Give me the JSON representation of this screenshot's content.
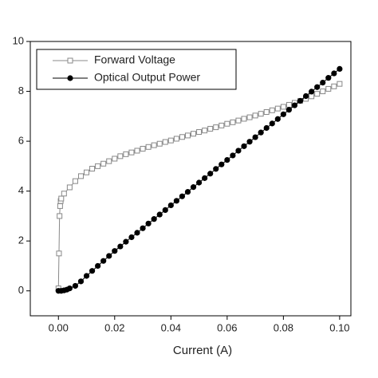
{
  "chart_data": {
    "type": "scatter-line",
    "x_label": "Current (A)",
    "xlim": [
      -0.01,
      0.104
    ],
    "ylim": [
      -1,
      10
    ],
    "xticks": [
      {
        "value": 0,
        "label": "0.00"
      },
      {
        "value": 0.02,
        "label": "0.02"
      },
      {
        "value": 0.04,
        "label": "0.04"
      },
      {
        "value": 0.06,
        "label": "0.06"
      },
      {
        "value": 0.08,
        "label": "0.08"
      },
      {
        "value": 0.1,
        "label": "0.10"
      }
    ],
    "yticks": [
      0,
      2,
      4,
      6,
      8,
      10
    ],
    "legend": "upper left",
    "series": [
      {
        "name": "Forward Voltage",
        "color": "#888888",
        "marker": "open-square",
        "x": [
          0,
          0.0002,
          0.0004,
          0.0006,
          0.0008,
          0.001,
          0.002,
          0.004,
          0.006,
          0.008,
          0.01,
          0.012,
          0.014,
          0.016,
          0.018,
          0.02,
          0.022,
          0.024,
          0.026,
          0.028,
          0.03,
          0.032,
          0.034,
          0.036,
          0.038,
          0.04,
          0.042,
          0.044,
          0.046,
          0.048,
          0.05,
          0.052,
          0.054,
          0.056,
          0.058,
          0.06,
          0.062,
          0.064,
          0.066,
          0.068,
          0.07,
          0.072,
          0.074,
          0.076,
          0.078,
          0.08,
          0.082,
          0.084,
          0.086,
          0.088,
          0.09,
          0.092,
          0.094,
          0.096,
          0.098,
          0.1
        ],
        "values": [
          0.1,
          1.5,
          3.0,
          3.4,
          3.6,
          3.7,
          3.9,
          4.15,
          4.4,
          4.6,
          4.75,
          4.9,
          5.0,
          5.1,
          5.2,
          5.3,
          5.4,
          5.48,
          5.55,
          5.62,
          5.7,
          5.77,
          5.84,
          5.9,
          5.97,
          6.03,
          6.1,
          6.17,
          6.23,
          6.3,
          6.37,
          6.43,
          6.5,
          6.56,
          6.63,
          6.7,
          6.76,
          6.83,
          6.9,
          6.96,
          7.03,
          7.1,
          7.17,
          7.24,
          7.31,
          7.38,
          7.46,
          7.54,
          7.62,
          7.7,
          7.8,
          7.9,
          8.0,
          8.1,
          8.2,
          8.3
        ]
      },
      {
        "name": "Optical Output Power",
        "color": "#000000",
        "marker": "filled-circle",
        "x": [
          0,
          0.001,
          0.002,
          0.003,
          0.004,
          0.006,
          0.008,
          0.01,
          0.012,
          0.014,
          0.016,
          0.018,
          0.02,
          0.022,
          0.024,
          0.026,
          0.028,
          0.03,
          0.032,
          0.034,
          0.036,
          0.038,
          0.04,
          0.042,
          0.044,
          0.046,
          0.048,
          0.05,
          0.052,
          0.054,
          0.056,
          0.058,
          0.06,
          0.062,
          0.064,
          0.066,
          0.068,
          0.07,
          0.072,
          0.074,
          0.076,
          0.078,
          0.08,
          0.082,
          0.084,
          0.086,
          0.088,
          0.09,
          0.092,
          0.094,
          0.096,
          0.098,
          0.1
        ],
        "values": [
          0,
          0,
          0.02,
          0.05,
          0.1,
          0.2,
          0.38,
          0.6,
          0.8,
          1.0,
          1.2,
          1.4,
          1.6,
          1.78,
          1.97,
          2.15,
          2.33,
          2.51,
          2.7,
          2.88,
          3.06,
          3.24,
          3.43,
          3.61,
          3.79,
          3.97,
          4.16,
          4.34,
          4.52,
          4.7,
          4.89,
          5.07,
          5.25,
          5.43,
          5.62,
          5.8,
          5.98,
          6.16,
          6.35,
          6.53,
          6.71,
          6.89,
          7.08,
          7.26,
          7.44,
          7.62,
          7.81,
          7.99,
          8.17,
          8.35,
          8.54,
          8.72,
          8.9
        ]
      }
    ]
  }
}
